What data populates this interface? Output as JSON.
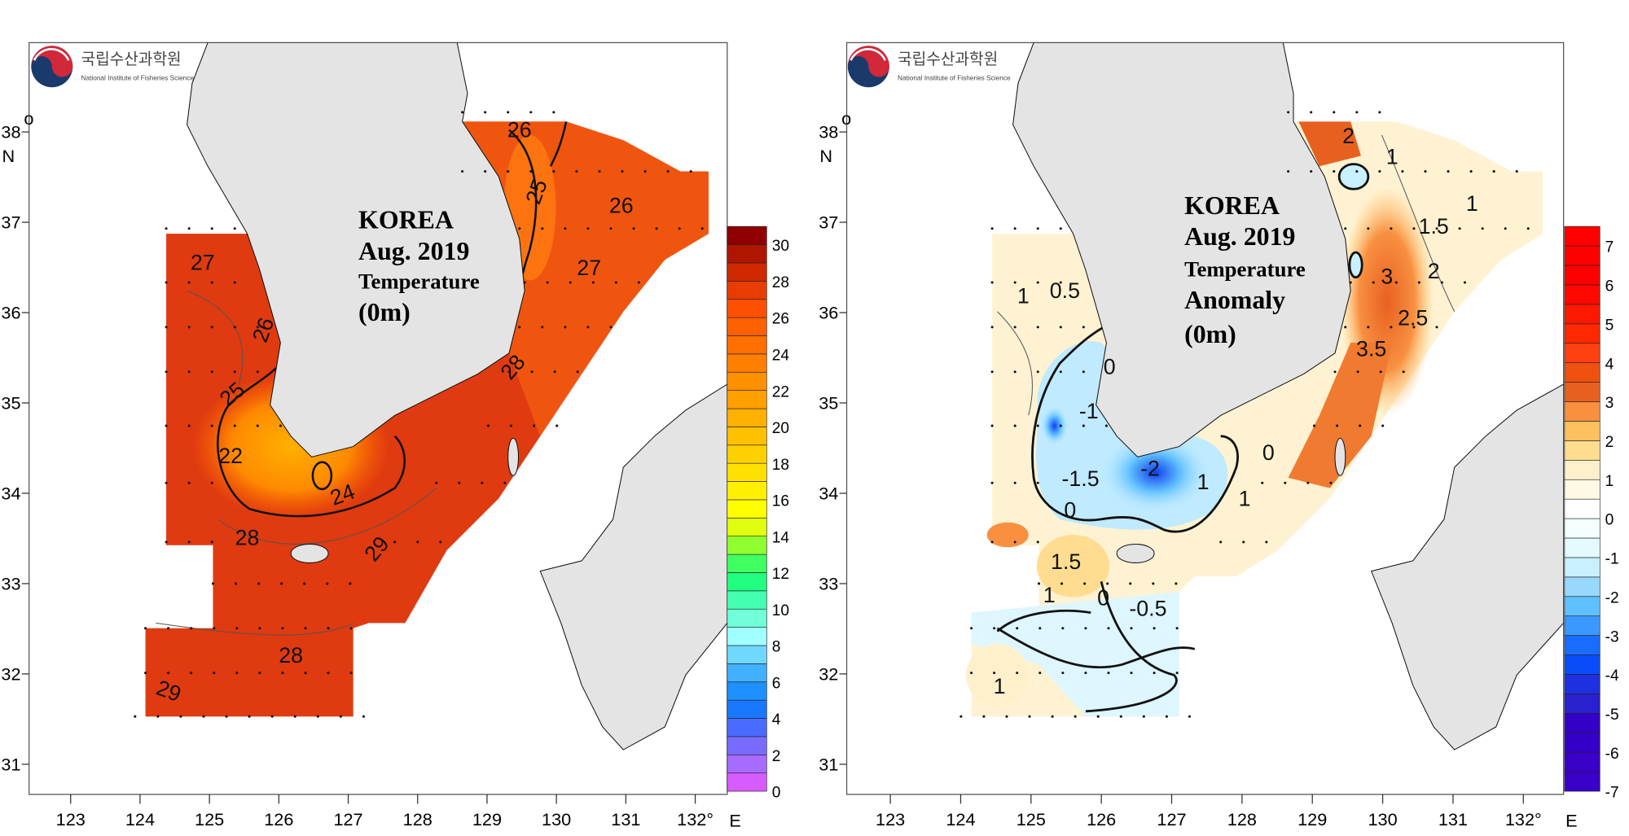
{
  "logo": {
    "korean": "국립수산과학원",
    "english": "National Institute of Fisheries Science"
  },
  "axes": {
    "lon_ticks": [
      "123",
      "124",
      "125",
      "126",
      "127",
      "128",
      "129",
      "130",
      "131",
      "132°"
    ],
    "lon_unit": "E",
    "lat_ticks": [
      "38",
      "37",
      "36",
      "35",
      "34",
      "33",
      "32",
      "31"
    ],
    "lat_degree": "o",
    "lat_unit": "N"
  },
  "maps": [
    {
      "title": [
        "KOREA",
        "Aug. 2019",
        "Temperature",
        "(0m)"
      ],
      "contour_labels": [
        "26",
        "25",
        "26",
        "27",
        "27",
        "26",
        "25",
        "22",
        "24",
        "28",
        "28",
        "29",
        "28",
        "29"
      ],
      "colorbar": {
        "min": 0,
        "max": 31,
        "step": 1,
        "ticks": [
          "30",
          "28",
          "26",
          "24",
          "22",
          "20",
          "18",
          "16",
          "14",
          "12",
          "10",
          "8",
          "6",
          "4",
          "2",
          "0"
        ],
        "colors": [
          "#d65cff",
          "#a86bff",
          "#7a6bff",
          "#4a6bff",
          "#1a78ff",
          "#1e90ff",
          "#40b0ff",
          "#70d8ff",
          "#a0ffff",
          "#70ffd8",
          "#45ffb0",
          "#20ff80",
          "#40ff60",
          "#90ff30",
          "#e0ff10",
          "#ffff00",
          "#fff000",
          "#ffe000",
          "#ffd000",
          "#ffc000",
          "#ffb000",
          "#ffa000",
          "#ff9000",
          "#ff8000",
          "#ff7000",
          "#ff6000",
          "#ff5000",
          "#e83c00",
          "#d02800",
          "#b01500",
          "#900000"
        ]
      }
    },
    {
      "title": [
        "KOREA",
        "Aug. 2019",
        "Temperature",
        "Anomaly",
        "(0m)"
      ],
      "contour_labels": [
        "2",
        "1",
        "1",
        "1.5",
        "2",
        "3",
        "2.5",
        "3.5",
        "1",
        "0.5",
        "0",
        "-1",
        "-1.5",
        "0",
        "-2",
        "1",
        "1",
        "0",
        "1.5",
        "1",
        "0",
        "-0.5",
        "1"
      ],
      "colorbar": {
        "min": -7,
        "max": 7.5,
        "step": 0.5,
        "ticks": [
          "7",
          "6",
          "5",
          "4",
          "3",
          "2",
          "1",
          "0",
          "-1",
          "-2",
          "-3",
          "-4",
          "-5",
          "-6",
          "-7"
        ],
        "colors": [
          "#3a00c8",
          "#3a00c8",
          "#3400c8",
          "#3400c8",
          "#2a20d0",
          "#1e30e0",
          "#0a4cf8",
          "#1a6cff",
          "#3a98ff",
          "#60c0ff",
          "#98d8fc",
          "#c8f0ff",
          "#e4faff",
          "#f2feff",
          "#ffffff",
          "#fff8e4",
          "#fff0cc",
          "#ffdc90",
          "#ffc060",
          "#f89040",
          "#e86020",
          "#f05010",
          "#ff4010",
          "#ff2800",
          "#ff1800",
          "#ff0800",
          "#ff0000",
          "#ff0000",
          "#ff0000"
        ]
      }
    }
  ]
}
